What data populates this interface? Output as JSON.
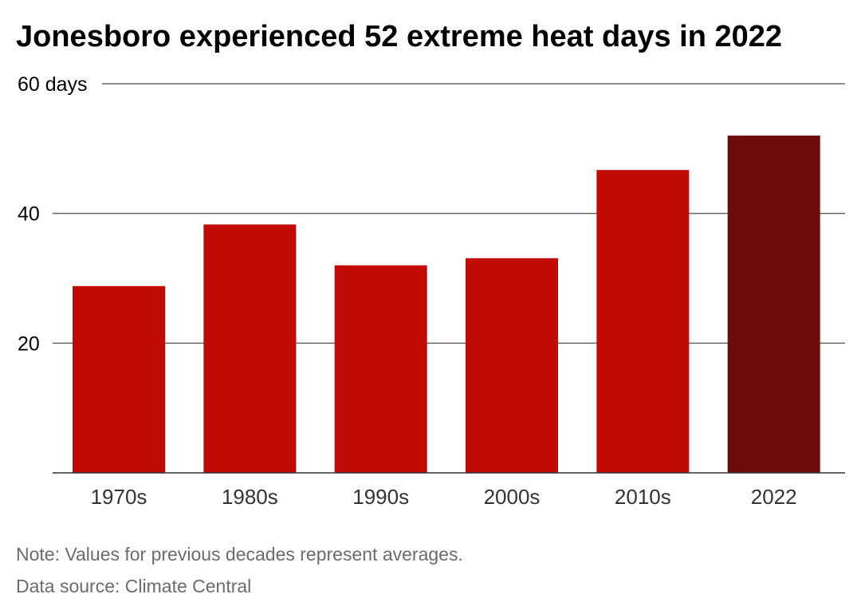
{
  "title": "Jonesboro experienced 52 extreme heat days in 2022",
  "notes": {
    "note": "Note: Values for previous decades represent averages.",
    "source": "Data source: Climate Central"
  },
  "colors": {
    "bar": "#c20a06",
    "highlight": "#6b0b0b",
    "grid": "#555555",
    "text": "#333333"
  },
  "chart_data": {
    "type": "bar",
    "title": "Jonesboro experienced 52 extreme heat days in 2022",
    "categories": [
      "1970s",
      "1980s",
      "1990s",
      "2000s",
      "2010s",
      "2022"
    ],
    "values": [
      28.8,
      38.3,
      32.0,
      33.1,
      46.7,
      52
    ],
    "highlight_category": "2022",
    "ylim": [
      0,
      60
    ],
    "yticks": [
      20,
      40,
      60
    ],
    "ytick_labels": [
      "20",
      "40",
      "60 days"
    ],
    "xlabel": "",
    "ylabel": "",
    "grid": true
  }
}
